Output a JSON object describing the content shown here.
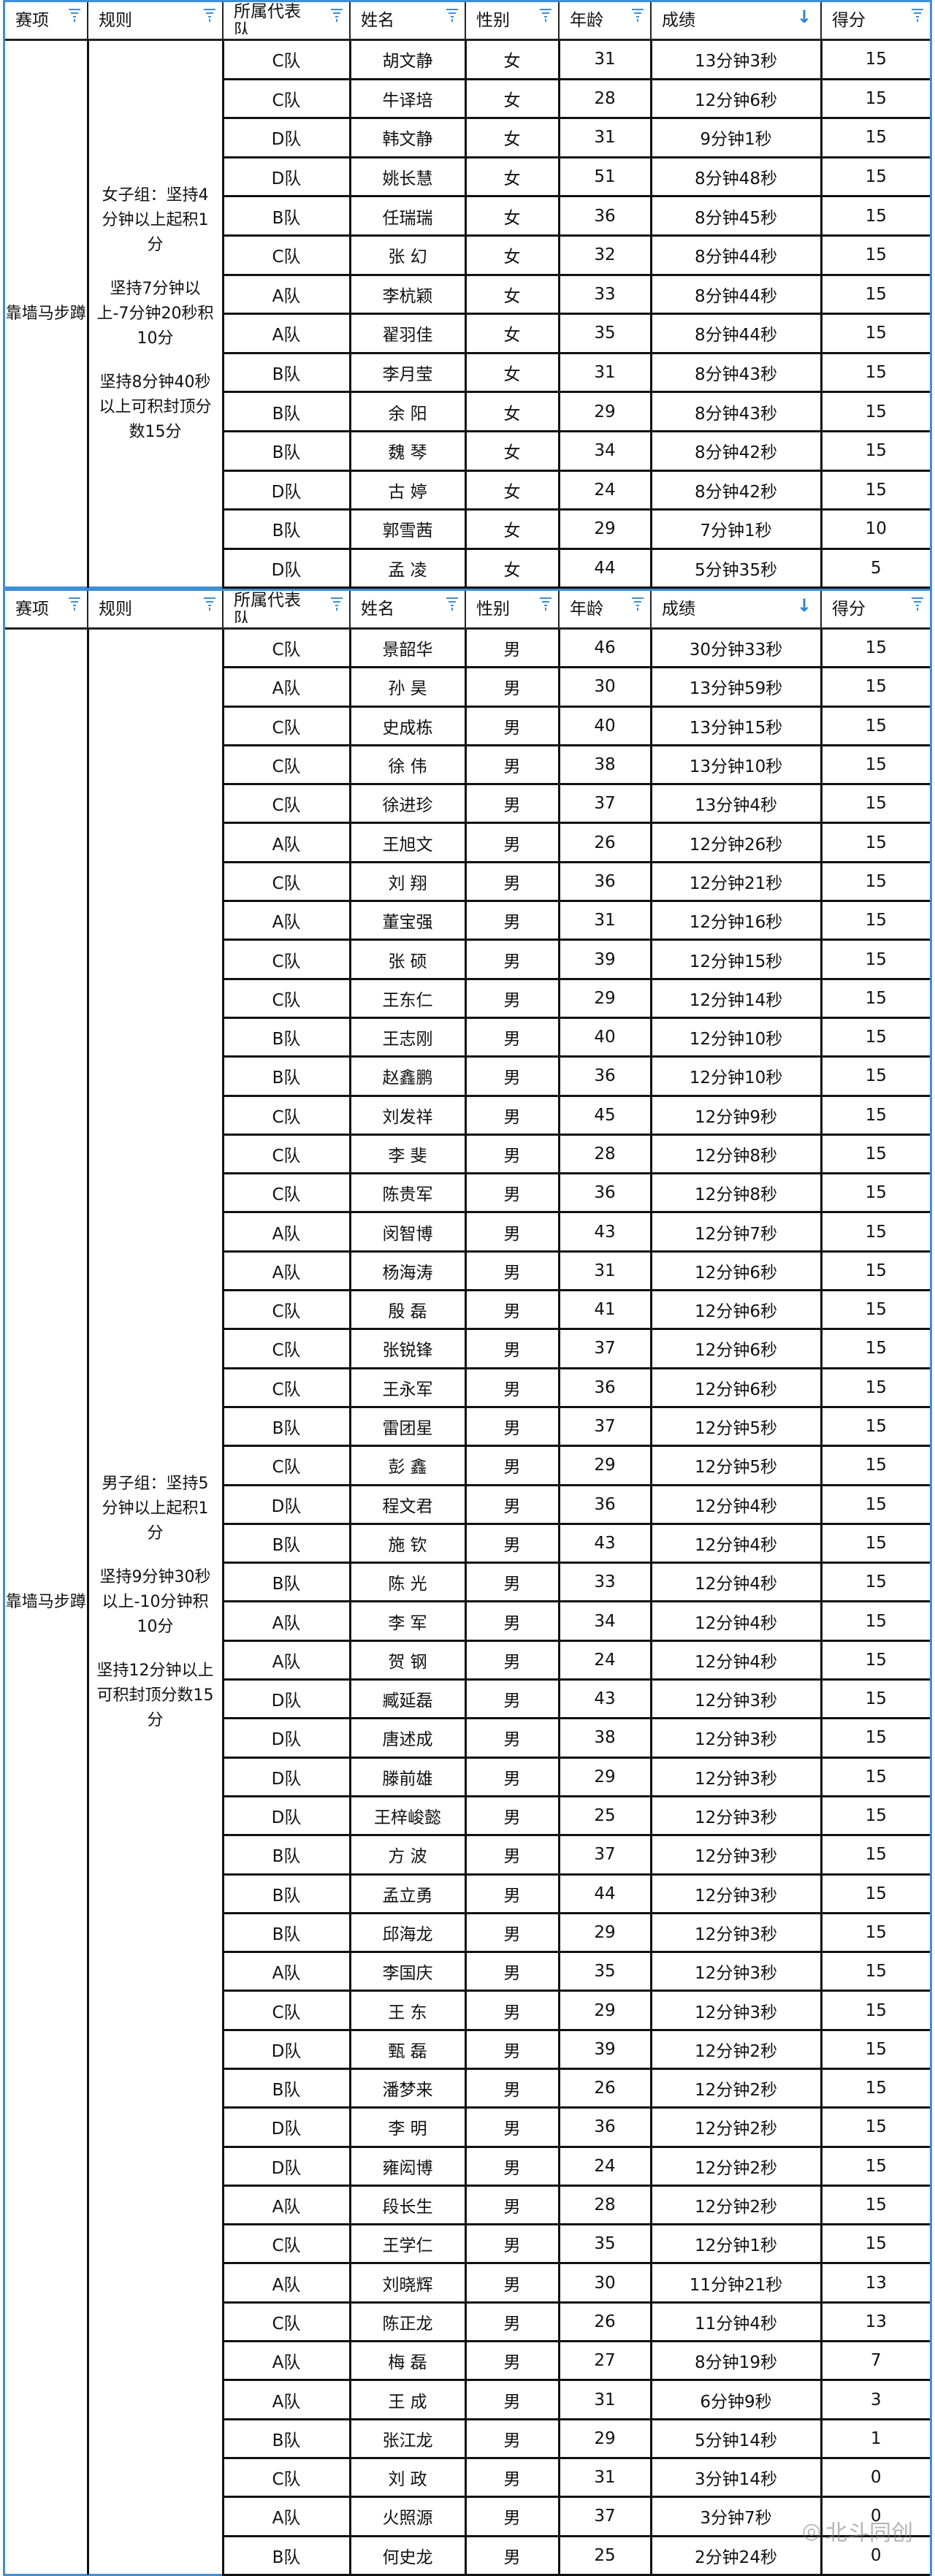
{
  "columns": [
    "赛项",
    "规则",
    "所属代表队",
    "姓名",
    "性别",
    "年龄",
    "成绩",
    "得分"
  ],
  "icons": {
    "filter": "filter-icon",
    "sort": "sort-descending-icon"
  },
  "colors": {
    "accent": "#3d8fd6",
    "sort": "#2a7fd4"
  },
  "watermark": "北斗同创",
  "female": {
    "event": "靠墙马步蹲",
    "rules": [
      "女子组：坚持4分钟以上起积1分",
      "坚持7分钟以上-7分钟20秒积10分",
      "坚持8分钟40秒以上可积封顶分数15分"
    ],
    "rows": [
      [
        "C队",
        "胡文静",
        "女",
        "31",
        "13分钟3秒",
        "15"
      ],
      [
        "C队",
        "牛译培",
        "女",
        "28",
        "12分钟6秒",
        "15"
      ],
      [
        "D队",
        "韩文静",
        "女",
        "31",
        "9分钟1秒",
        "15"
      ],
      [
        "D队",
        "姚长慧",
        "女",
        "51",
        "8分钟48秒",
        "15"
      ],
      [
        "B队",
        "任瑞瑞",
        "女",
        "36",
        "8分钟45秒",
        "15"
      ],
      [
        "C队",
        "张 幻",
        "女",
        "32",
        "8分钟44秒",
        "15"
      ],
      [
        "A队",
        "李杭颖",
        "女",
        "33",
        "8分钟44秒",
        "15"
      ],
      [
        "A队",
        "翟羽佳",
        "女",
        "35",
        "8分钟44秒",
        "15"
      ],
      [
        "B队",
        "李月莹",
        "女",
        "31",
        "8分钟43秒",
        "15"
      ],
      [
        "B队",
        "余 阳",
        "女",
        "29",
        "8分钟43秒",
        "15"
      ],
      [
        "B队",
        "魏 琴",
        "女",
        "34",
        "8分钟42秒",
        "15"
      ],
      [
        "D队",
        "古 婷",
        "女",
        "24",
        "8分钟42秒",
        "15"
      ],
      [
        "B队",
        "郭雪茜",
        "女",
        "29",
        "7分钟1秒",
        "10"
      ],
      [
        "D队",
        "孟 凌",
        "女",
        "44",
        "5分钟35秒",
        "5"
      ]
    ]
  },
  "male": {
    "event": "靠墙马步蹲",
    "rules": [
      "男子组：坚持5分钟以上起积1分",
      "坚持9分钟30秒以上-10分钟积10分",
      "坚持12分钟以上可积封顶分数15分"
    ],
    "rows": [
      [
        "C队",
        "景韶华",
        "男",
        "46",
        "30分钟33秒",
        "15"
      ],
      [
        "A队",
        "孙 昊",
        "男",
        "30",
        "13分钟59秒",
        "15"
      ],
      [
        "C队",
        "史成栋",
        "男",
        "40",
        "13分钟15秒",
        "15"
      ],
      [
        "C队",
        "徐 伟",
        "男",
        "38",
        "13分钟10秒",
        "15"
      ],
      [
        "C队",
        "徐进珍",
        "男",
        "37",
        "13分钟4秒",
        "15"
      ],
      [
        "A队",
        "王旭文",
        "男",
        "26",
        "12分钟26秒",
        "15"
      ],
      [
        "C队",
        "刘 翔",
        "男",
        "36",
        "12分钟21秒",
        "15"
      ],
      [
        "A队",
        "董宝强",
        "男",
        "31",
        "12分钟16秒",
        "15"
      ],
      [
        "C队",
        "张 硕",
        "男",
        "39",
        "12分钟15秒",
        "15"
      ],
      [
        "C队",
        "王东仁",
        "男",
        "29",
        "12分钟14秒",
        "15"
      ],
      [
        "B队",
        "王志刚",
        "男",
        "40",
        "12分钟10秒",
        "15"
      ],
      [
        "B队",
        "赵鑫鹏",
        "男",
        "36",
        "12分钟10秒",
        "15"
      ],
      [
        "C队",
        "刘发祥",
        "男",
        "45",
        "12分钟9秒",
        "15"
      ],
      [
        "C队",
        "李 斐",
        "男",
        "28",
        "12分钟8秒",
        "15"
      ],
      [
        "C队",
        "陈贵军",
        "男",
        "36",
        "12分钟8秒",
        "15"
      ],
      [
        "A队",
        "闵智博",
        "男",
        "43",
        "12分钟7秒",
        "15"
      ],
      [
        "A队",
        "杨海涛",
        "男",
        "31",
        "12分钟6秒",
        "15"
      ],
      [
        "C队",
        "殷 磊",
        "男",
        "41",
        "12分钟6秒",
        "15"
      ],
      [
        "C队",
        "张锐锋",
        "男",
        "37",
        "12分钟6秒",
        "15"
      ],
      [
        "C队",
        "王永军",
        "男",
        "36",
        "12分钟6秒",
        "15"
      ],
      [
        "B队",
        "雷团星",
        "男",
        "37",
        "12分钟5秒",
        "15"
      ],
      [
        "C队",
        "彭 鑫",
        "男",
        "29",
        "12分钟5秒",
        "15"
      ],
      [
        "D队",
        "程文君",
        "男",
        "36",
        "12分钟4秒",
        "15"
      ],
      [
        "B队",
        "施 钦",
        "男",
        "43",
        "12分钟4秒",
        "15"
      ],
      [
        "B队",
        "陈 光",
        "男",
        "33",
        "12分钟4秒",
        "15"
      ],
      [
        "A队",
        "李 军",
        "男",
        "34",
        "12分钟4秒",
        "15"
      ],
      [
        "A队",
        "贺 钢",
        "男",
        "24",
        "12分钟4秒",
        "15"
      ],
      [
        "D队",
        "臧延磊",
        "男",
        "43",
        "12分钟3秒",
        "15"
      ],
      [
        "D队",
        "唐述成",
        "男",
        "38",
        "12分钟3秒",
        "15"
      ],
      [
        "D队",
        "滕前雄",
        "男",
        "29",
        "12分钟3秒",
        "15"
      ],
      [
        "D队",
        "王梓峻懿",
        "男",
        "25",
        "12分钟3秒",
        "15"
      ],
      [
        "B队",
        "方 波",
        "男",
        "37",
        "12分钟3秒",
        "15"
      ],
      [
        "B队",
        "孟立勇",
        "男",
        "44",
        "12分钟3秒",
        "15"
      ],
      [
        "B队",
        "邱海龙",
        "男",
        "29",
        "12分钟3秒",
        "15"
      ],
      [
        "A队",
        "李国庆",
        "男",
        "35",
        "12分钟3秒",
        "15"
      ],
      [
        "C队",
        "王 东",
        "男",
        "29",
        "12分钟3秒",
        "15"
      ],
      [
        "D队",
        "甄 磊",
        "男",
        "39",
        "12分钟2秒",
        "15"
      ],
      [
        "B队",
        "潘梦来",
        "男",
        "26",
        "12分钟2秒",
        "15"
      ],
      [
        "D队",
        "李 明",
        "男",
        "36",
        "12分钟2秒",
        "15"
      ],
      [
        "D队",
        "雍闳博",
        "男",
        "24",
        "12分钟2秒",
        "15"
      ],
      [
        "A队",
        "段长生",
        "男",
        "28",
        "12分钟2秒",
        "15"
      ],
      [
        "C队",
        "王学仁",
        "男",
        "35",
        "12分钟1秒",
        "15"
      ],
      [
        "A队",
        "刘晓辉",
        "男",
        "30",
        "11分钟21秒",
        "13"
      ],
      [
        "C队",
        "陈正龙",
        "男",
        "26",
        "11分钟4秒",
        "13"
      ],
      [
        "A队",
        "梅 磊",
        "男",
        "27",
        "8分钟19秒",
        "7"
      ],
      [
        "A队",
        "王 成",
        "男",
        "31",
        "6分钟9秒",
        "3"
      ],
      [
        "B队",
        "张江龙",
        "男",
        "29",
        "5分钟14秒",
        "1"
      ],
      [
        "C队",
        "刘 政",
        "男",
        "31",
        "3分钟14秒",
        "0"
      ],
      [
        "A队",
        "火照源",
        "男",
        "37",
        "3分钟7秒",
        "0"
      ],
      [
        "B队",
        "何史龙",
        "男",
        "25",
        "2分钟24秒",
        "0"
      ]
    ]
  }
}
